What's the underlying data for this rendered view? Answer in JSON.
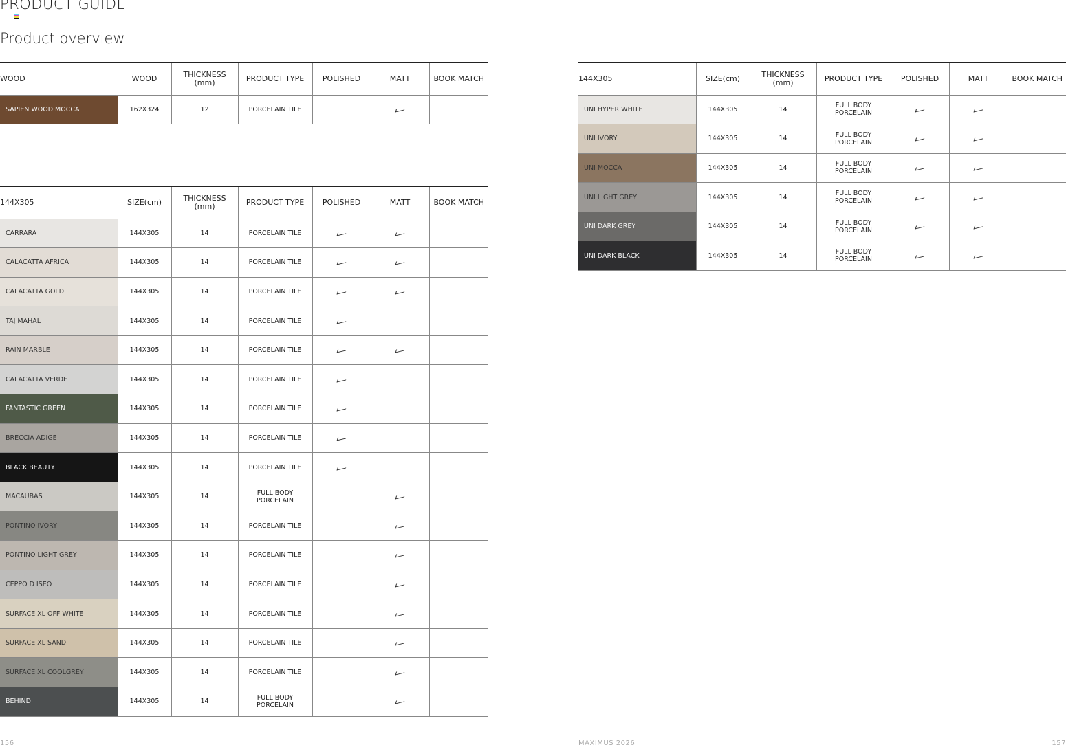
{
  "header": {
    "section": "PRODUCT GUIDE",
    "title": "Product overview"
  },
  "tables": [
    {
      "id": "wood",
      "columns": [
        "WOOD",
        "WOOD",
        "THICKNESS\n(mm)",
        "PRODUCT TYPE",
        "POLISHED",
        "MATT",
        "BOOK MATCH"
      ],
      "rows": [
        {
          "name": "SAPIEN WOOD MOCCA",
          "swatch": "#6e4a30",
          "light": true,
          "size": "162X324",
          "thickness": "12",
          "type": "PORCELAIN TILE",
          "polished": false,
          "matt": true,
          "book_match": false
        }
      ]
    },
    {
      "id": "144-left",
      "columns": [
        "144X305",
        "SIZE(cm)",
        "THICKNESS\n(mm)",
        "PRODUCT TYPE",
        "POLISHED",
        "MATT",
        "BOOK MATCH"
      ],
      "rows": [
        {
          "name": "CARRARA",
          "swatch": "#e8e6e3",
          "size": "144X305",
          "thickness": "14",
          "type": "PORCELAIN TILE",
          "polished": true,
          "matt": true,
          "book_match": false
        },
        {
          "name": "CALACATTA AFRICA",
          "swatch": "#e2dcd5",
          "size": "144X305",
          "thickness": "14",
          "type": "PORCELAIN TILE",
          "polished": true,
          "matt": true,
          "book_match": false
        },
        {
          "name": "CALACATTA GOLD",
          "swatch": "#e6e1da",
          "size": "144X305",
          "thickness": "14",
          "type": "PORCELAIN TILE",
          "polished": true,
          "matt": true,
          "book_match": false
        },
        {
          "name": "TAJ MAHAL",
          "swatch": "#dddad5",
          "size": "144X305",
          "thickness": "14",
          "type": "PORCELAIN TILE",
          "polished": true,
          "matt": false,
          "book_match": false
        },
        {
          "name": "RAIN MARBLE",
          "swatch": "#d6cfc9",
          "size": "144X305",
          "thickness": "14",
          "type": "PORCELAIN TILE",
          "polished": true,
          "matt": true,
          "book_match": false
        },
        {
          "name": "CALACATTA VERDE",
          "swatch": "#d3d3d2",
          "size": "144X305",
          "thickness": "14",
          "type": "PORCELAIN TILE",
          "polished": true,
          "matt": false,
          "book_match": false
        },
        {
          "name": "FANTASTIC GREEN",
          "swatch": "#4f5a48",
          "light": true,
          "size": "144X305",
          "thickness": "14",
          "type": "PORCELAIN TILE",
          "polished": true,
          "matt": false,
          "book_match": false
        },
        {
          "name": "BRECCIA ADIGE",
          "swatch": "#a9a5a0",
          "size": "144X305",
          "thickness": "14",
          "type": "PORCELAIN TILE",
          "polished": true,
          "matt": false,
          "book_match": false
        },
        {
          "name": "BLACK BEAUTY",
          "swatch": "#151515",
          "light": true,
          "size": "144X305",
          "thickness": "14",
          "type": "PORCELAIN TILE",
          "polished": true,
          "matt": false,
          "book_match": false
        },
        {
          "name": "MACAUBAS",
          "swatch": "#cbc9c4",
          "size": "144X305",
          "thickness": "14",
          "type": "FULL BODY\nPORCELAIN",
          "polished": false,
          "matt": true,
          "book_match": false
        },
        {
          "name": "PONTINO IVORY",
          "swatch": "#878782",
          "size": "144X305",
          "thickness": "14",
          "type": "PORCELAIN TILE",
          "polished": false,
          "matt": true,
          "book_match": false
        },
        {
          "name": "PONTINO LIGHT GREY",
          "swatch": "#bdb7b0",
          "size": "144X305",
          "thickness": "14",
          "type": "PORCELAIN TILE",
          "polished": false,
          "matt": true,
          "book_match": false
        },
        {
          "name": "CEPPO D ISEO",
          "swatch": "#bebdbb",
          "size": "144X305",
          "thickness": "14",
          "type": "PORCELAIN TILE",
          "polished": false,
          "matt": true,
          "book_match": false
        },
        {
          "name": "SURFACE XL OFF WHITE",
          "swatch": "#d9d1c0",
          "size": "144X305",
          "thickness": "14",
          "type": "PORCELAIN TILE",
          "polished": false,
          "matt": true,
          "book_match": false
        },
        {
          "name": "SURFACE XL SAND",
          "swatch": "#cfc1aa",
          "size": "144X305",
          "thickness": "14",
          "type": "PORCELAIN TILE",
          "polished": false,
          "matt": true,
          "book_match": false
        },
        {
          "name": "SURFACE XL COOLGREY",
          "swatch": "#8e8e88",
          "size": "144X305",
          "thickness": "14",
          "type": "PORCELAIN TILE",
          "polished": false,
          "matt": true,
          "book_match": false
        },
        {
          "name": "BEHIND",
          "swatch": "#4c4f50",
          "light": true,
          "size": "144X305",
          "thickness": "14",
          "type": "FULL BODY\nPORCELAIN",
          "polished": false,
          "matt": true,
          "book_match": false
        }
      ]
    },
    {
      "id": "144-right",
      "columns": [
        "144X305",
        "SIZE(cm)",
        "THICKNESS\n(mm)",
        "PRODUCT TYPE",
        "POLISHED",
        "MATT",
        "BOOK MATCH"
      ],
      "rows": [
        {
          "name": "UNI HYPER WHITE",
          "swatch": "#e8e6e3",
          "size": "144X305",
          "thickness": "14",
          "type": "FULL BODY\nPORCELAIN",
          "polished": true,
          "matt": true,
          "book_match": false
        },
        {
          "name": "UNI IVORY",
          "swatch": "#d3c9bb",
          "size": "144X305",
          "thickness": "14",
          "type": "FULL BODY\nPORCELAIN",
          "polished": true,
          "matt": true,
          "book_match": false
        },
        {
          "name": "UNI MOCCA",
          "swatch": "#8b7560",
          "size": "144X305",
          "thickness": "14",
          "type": "FULL BODY\nPORCELAIN",
          "polished": true,
          "matt": true,
          "book_match": false
        },
        {
          "name": "UNI LIGHT GREY",
          "swatch": "#9b9895",
          "size": "144X305",
          "thickness": "14",
          "type": "FULL BODY\nPORCELAIN",
          "polished": true,
          "matt": true,
          "book_match": false
        },
        {
          "name": "UNI DARK GREY",
          "swatch": "#6b6a68",
          "light": true,
          "size": "144X305",
          "thickness": "14",
          "type": "FULL BODY\nPORCELAIN",
          "polished": true,
          "matt": true,
          "book_match": false
        },
        {
          "name": "UNI DARK BLACK",
          "swatch": "#2e2e30",
          "light": true,
          "size": "144X305",
          "thickness": "14",
          "type": "FULL BODY\nPORCELAIN",
          "polished": true,
          "matt": true,
          "book_match": false
        }
      ]
    }
  ],
  "footer": {
    "left_page": "156",
    "brand": "MAXIMUS 2026",
    "right_page": "157"
  }
}
